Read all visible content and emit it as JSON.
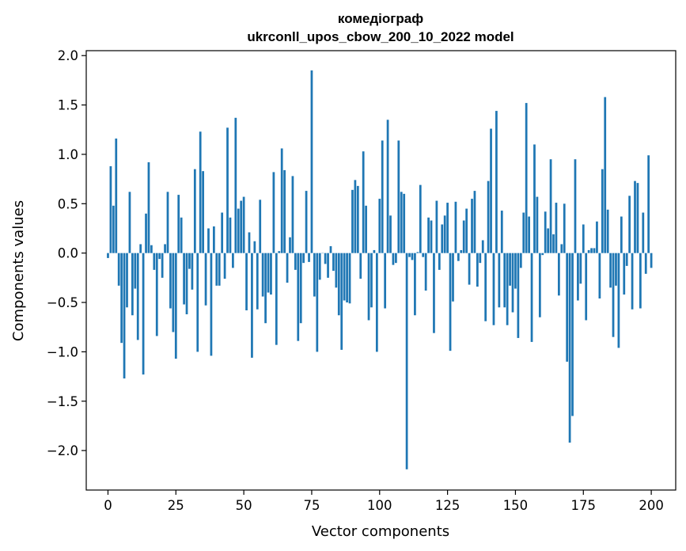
{
  "chart_data": {
    "type": "bar",
    "title": [
      "комедіограф",
      "ukrconll_upos_cbow_200_10_2022 model"
    ],
    "xlabel": "Vector components",
    "ylabel": "Components values",
    "xlim": [
      -8,
      209
    ],
    "ylim": [
      -2.4,
      2.05
    ],
    "xticks": [
      0,
      25,
      50,
      75,
      100,
      125,
      150,
      175,
      200
    ],
    "xtick_labels": [
      "0",
      "25",
      "50",
      "75",
      "100",
      "125",
      "150",
      "175",
      "200"
    ],
    "yticks": [
      2.0,
      1.5,
      1.0,
      0.5,
      0.0,
      -0.5,
      -1.0,
      -1.5,
      -2.0
    ],
    "ytick_labels": [
      "2.0",
      "1.5",
      "1.0",
      "0.5",
      "0.0",
      "−0.5",
      "−1.0",
      "−1.5",
      "−2.0"
    ],
    "grid": false,
    "color": "#1f77b4",
    "values": [
      -0.05,
      0.88,
      0.48,
      1.16,
      -0.33,
      -0.91,
      -1.27,
      -0.55,
      0.62,
      -0.63,
      -0.36,
      -0.88,
      0.09,
      -1.23,
      0.4,
      0.92,
      0.08,
      -0.17,
      -0.84,
      -0.06,
      -0.25,
      0.09,
      0.62,
      -0.56,
      -0.8,
      -1.07,
      0.59,
      0.36,
      -0.52,
      -0.62,
      -0.16,
      -0.37,
      0.85,
      -1.0,
      1.23,
      0.83,
      -0.53,
      0.25,
      -1.04,
      0.27,
      -0.33,
      -0.33,
      0.41,
      -0.26,
      1.27,
      0.36,
      -0.15,
      1.37,
      0.45,
      0.53,
      0.57,
      -0.58,
      0.21,
      -1.06,
      0.12,
      -0.57,
      0.54,
      -0.44,
      -0.71,
      -0.4,
      -0.42,
      0.82,
      -0.93,
      0.02,
      1.06,
      0.84,
      -0.3,
      0.16,
      0.78,
      -0.17,
      -0.89,
      -0.71,
      -0.1,
      0.63,
      -0.09,
      1.85,
      -0.44,
      -1.0,
      -0.27,
      0.0,
      -0.11,
      -0.25,
      0.07,
      -0.18,
      -0.35,
      -0.63,
      -0.98,
      -0.48,
      -0.5,
      -0.51,
      0.64,
      0.74,
      0.68,
      -0.26,
      1.03,
      0.48,
      -0.68,
      -0.55,
      0.03,
      -1.0,
      0.55,
      1.14,
      -0.56,
      1.35,
      0.38,
      -0.12,
      -0.1,
      1.14,
      0.62,
      0.6,
      -2.19,
      -0.04,
      -0.07,
      -0.63,
      0.01,
      0.69,
      -0.04,
      -0.38,
      0.36,
      0.33,
      -0.81,
      0.53,
      -0.17,
      0.29,
      0.38,
      0.51,
      -0.99,
      -0.49,
      0.52,
      -0.08,
      0.03,
      0.33,
      0.45,
      -0.32,
      0.55,
      0.63,
      -0.34,
      -0.1,
      0.13,
      -0.69,
      0.73,
      1.26,
      -0.73,
      1.44,
      -0.55,
      0.43,
      -0.55,
      -0.73,
      -0.33,
      -0.6,
      -0.36,
      -0.86,
      -0.15,
      0.41,
      1.52,
      0.37,
      -0.9,
      1.1,
      0.57,
      -0.65,
      -0.02,
      0.42,
      0.25,
      0.95,
      0.19,
      0.51,
      -0.43,
      0.09,
      0.5,
      -1.1,
      -1.92,
      -1.65,
      0.95,
      -0.48,
      -0.31,
      0.29,
      -0.68,
      0.03,
      0.05,
      0.05,
      0.32,
      -0.46,
      0.85,
      1.58,
      0.44,
      -0.35,
      -0.85,
      -0.33,
      -0.96,
      0.37,
      -0.42,
      -0.13,
      0.58,
      -0.57,
      0.73,
      0.71,
      -0.56,
      0.41,
      -0.21,
      0.99,
      -0.15
    ]
  }
}
